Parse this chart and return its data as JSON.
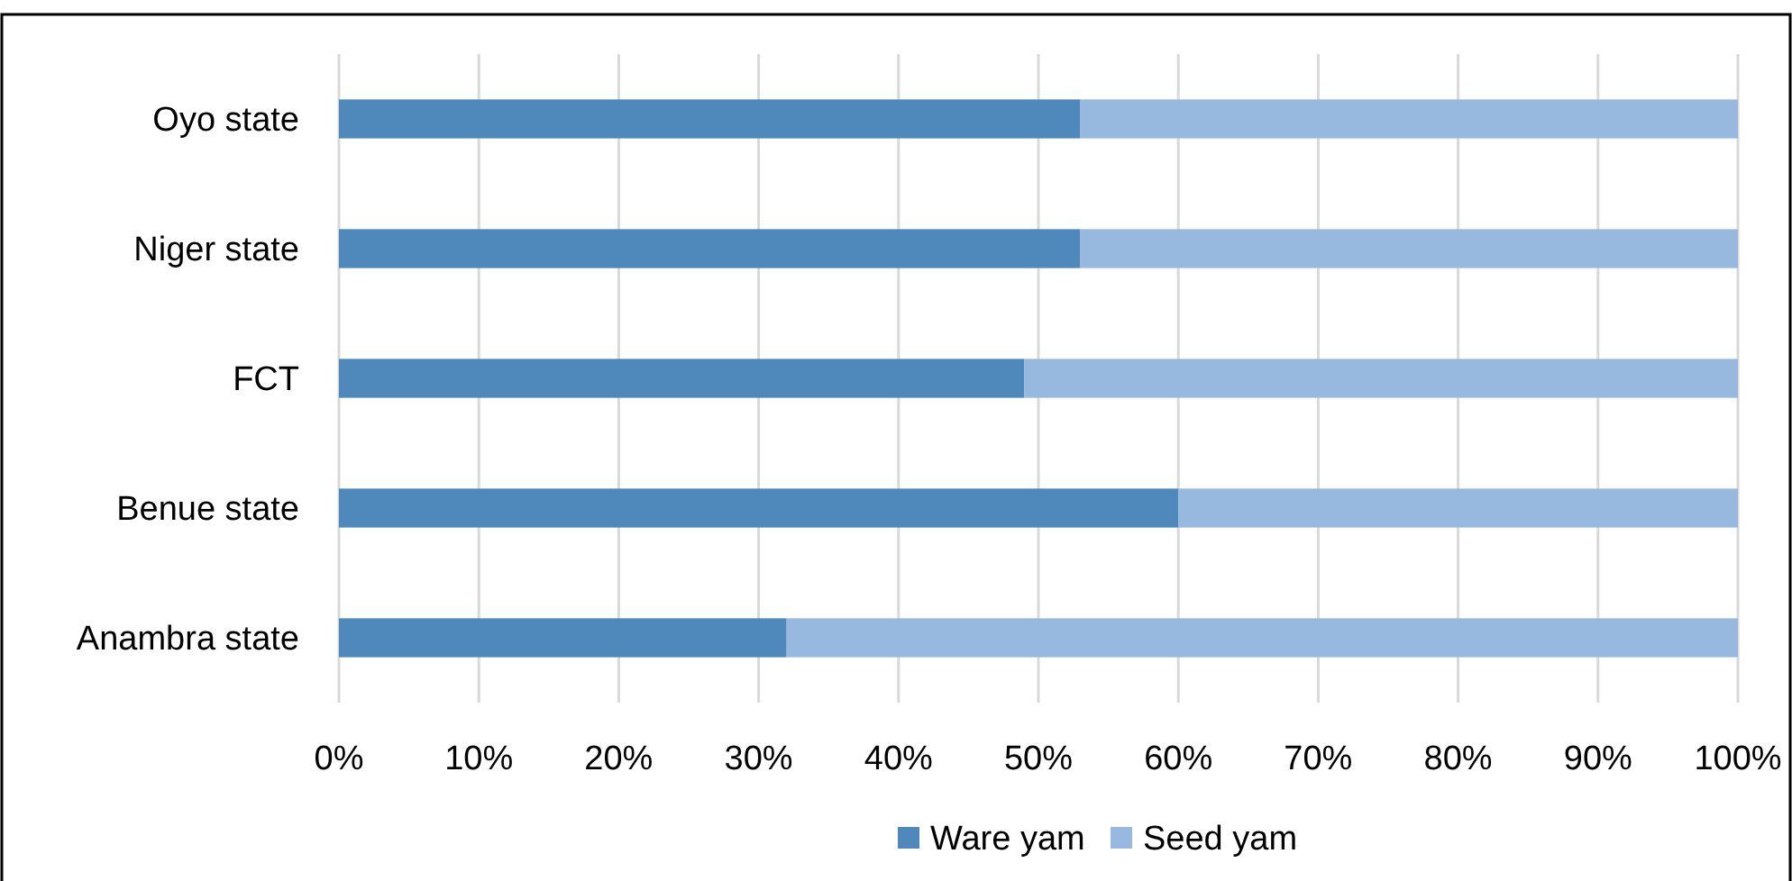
{
  "chart_data": {
    "type": "bar",
    "orientation": "horizontal",
    "stacked": true,
    "categories": [
      "Oyo state",
      "Niger state",
      "FCT",
      "Benue state",
      "Anambra state"
    ],
    "series": [
      {
        "name": "Ware yam",
        "color": "#4f89bc",
        "values": [
          53,
          53,
          49,
          60,
          32
        ]
      },
      {
        "name": "Seed yam",
        "color": "#97b9df",
        "values": [
          47,
          47,
          51,
          40,
          68
        ]
      }
    ],
    "xlim": [
      0,
      100
    ],
    "xticks": [
      {
        "value": 0,
        "label": "0%"
      },
      {
        "value": 10,
        "label": "10%"
      },
      {
        "value": 20,
        "label": "20%"
      },
      {
        "value": 30,
        "label": "30%"
      },
      {
        "value": 40,
        "label": "40%"
      },
      {
        "value": 50,
        "label": "50%"
      },
      {
        "value": 60,
        "label": "60%"
      },
      {
        "value": 70,
        "label": "70%"
      },
      {
        "value": 80,
        "label": "80%"
      },
      {
        "value": 90,
        "label": "90%"
      },
      {
        "value": 100,
        "label": "100%"
      }
    ],
    "grid": "x",
    "legend": "bottom"
  }
}
